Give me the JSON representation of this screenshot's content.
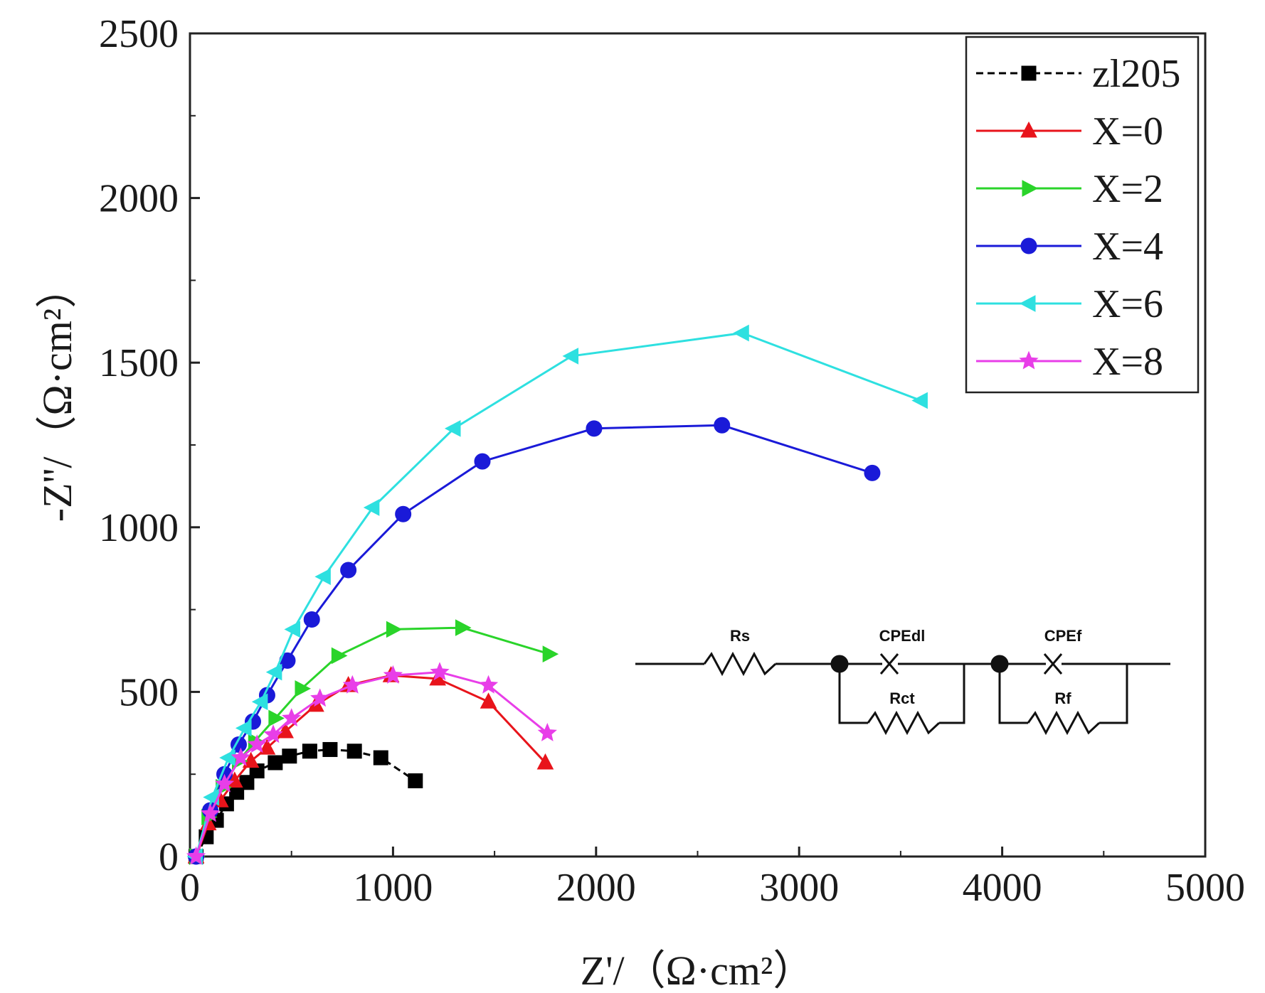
{
  "chart_data": {
    "type": "scatter",
    "title": "",
    "xlabel": "Z'/（Ω·cm²）",
    "ylabel": "-Z''/（Ω·cm²）",
    "xlim": [
      0,
      5000
    ],
    "ylim": [
      0,
      2500
    ],
    "xticks": [
      "0",
      "1000",
      "2000",
      "3000",
      "4000",
      "5000"
    ],
    "yticks": [
      "0",
      "500",
      "1000",
      "1500",
      "2000",
      "2500"
    ],
    "grid": false,
    "legend_position": "top-right",
    "series": [
      {
        "name": "zl205",
        "color": "#000000",
        "marker": "square",
        "line": "dashed",
        "x": [
          30,
          80,
          130,
          180,
          230,
          280,
          330,
          420,
          490,
          590,
          690,
          810,
          940,
          1110
        ],
        "y": [
          0,
          60,
          110,
          160,
          195,
          225,
          260,
          285,
          305,
          320,
          325,
          320,
          300,
          230
        ]
      },
      {
        "name": "X=0",
        "color": "#e8141b",
        "marker": "triangle-up",
        "line": "solid",
        "x": [
          30,
          90,
          150,
          220,
          300,
          380,
          470,
          620,
          780,
          990,
          1220,
          1470,
          1750
        ],
        "y": [
          0,
          100,
          170,
          230,
          290,
          330,
          380,
          460,
          520,
          550,
          540,
          470,
          285
        ]
      },
      {
        "name": "X=2",
        "color": "#2ad42a",
        "marker": "triangle-right",
        "line": "solid",
        "x": [
          30,
          90,
          160,
          240,
          320,
          420,
          550,
          730,
          1000,
          1340,
          1770
        ],
        "y": [
          0,
          120,
          210,
          290,
          350,
          420,
          510,
          610,
          690,
          695,
          615
        ]
      },
      {
        "name": "X=4",
        "color": "#1a1ad8",
        "marker": "circle",
        "line": "solid",
        "x": [
          30,
          100,
          170,
          240,
          310,
          380,
          480,
          600,
          780,
          1050,
          1440,
          1990,
          2620,
          3360
        ],
        "y": [
          0,
          140,
          250,
          340,
          410,
          490,
          595,
          720,
          870,
          1040,
          1200,
          1300,
          1310,
          1165
        ]
      },
      {
        "name": "X=6",
        "color": "#2ee0e0",
        "marker": "triangle-left",
        "line": "solid",
        "x": [
          30,
          110,
          190,
          270,
          350,
          420,
          510,
          660,
          900,
          1300,
          1880,
          2720,
          3600
        ],
        "y": [
          0,
          180,
          300,
          390,
          470,
          560,
          690,
          850,
          1060,
          1300,
          1520,
          1590,
          1385
        ]
      },
      {
        "name": "X=8",
        "color": "#e83ee8",
        "marker": "star",
        "line": "solid",
        "x": [
          30,
          100,
          170,
          250,
          330,
          410,
          500,
          640,
          800,
          1000,
          1230,
          1470,
          1760
        ],
        "y": [
          0,
          130,
          220,
          300,
          340,
          370,
          420,
          480,
          520,
          550,
          560,
          520,
          375
        ]
      }
    ],
    "inset_circuit": {
      "labels": {
        "rs": "Rs",
        "cpe_dl": "CPEdl",
        "rct": "Rct",
        "cpe_f": "CPEf",
        "rf": "Rf"
      }
    }
  }
}
